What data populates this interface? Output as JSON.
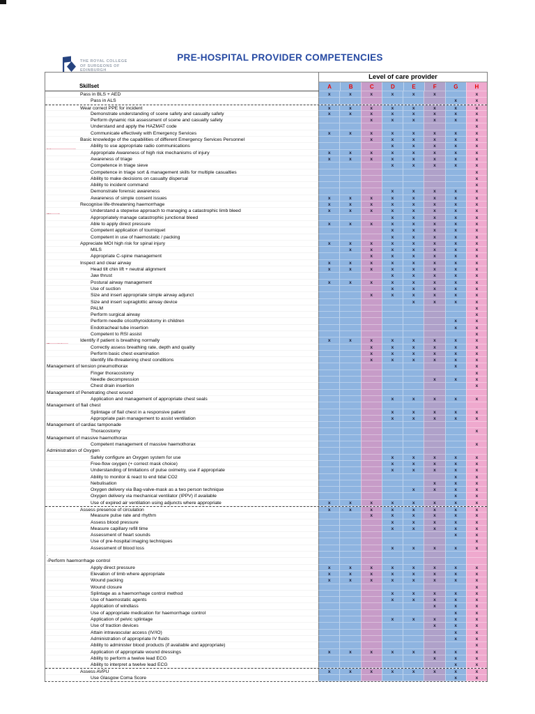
{
  "title": "PRE-HOSPITAL PROVIDER COMPETENCIES",
  "logo": {
    "line1": "THE ROYAL COLLEGE",
    "line2": "OF SURGEONS OF",
    "line3": "EDINBURGH"
  },
  "colors": {
    "title_blue": "#2448A2",
    "column_letter_red": "#E80000",
    "column_blue": "#8EB4E0",
    "column_plum": "#C79CC8",
    "column_lavender": "#AFA1C9",
    "column_pink": "#EFA9CE",
    "category_bg": "#F5C3CD",
    "category_text": "#943437",
    "logo_blue": "#26437F",
    "logo_text_gray": "#98A1AE"
  },
  "table": {
    "corner_header": "Skillset",
    "columns_header": "Level of care provider",
    "mark": "x",
    "columns": [
      "A",
      "B",
      "C",
      "D",
      "E",
      "F",
      "G",
      "H"
    ],
    "column_colors": {
      "A": "#8EB4E0",
      "B": "#8EB4E0",
      "C": "#C79CC8",
      "D": "#8EB4E0",
      "E": "#8EB4E0",
      "F": "#AFA1C9",
      "G": "#8EB4E0",
      "H": "#EFA9CE"
    },
    "rows": [
      {
        "cat": "",
        "label": "Pass in BLS + AED",
        "marks": "ABCDEFH"
      },
      {
        "cat": "",
        "label": "Pass in ALS",
        "marks": "GH",
        "indent": true
      },
      {
        "cat": "Safety",
        "label": "Wear correct PPE for incident",
        "marks": "ABCDEFGH",
        "dash": true
      },
      {
        "label": "Demonstrate understanding of scene safety and casualty safety",
        "marks": "ABCDEFGH",
        "indent": true
      },
      {
        "label": "Perform dynamic risk assessment of scene and casualty safety",
        "marks": "CDEFGH",
        "indent": true
      },
      {
        "label": "Understand and apply the HAZMAT code",
        "marks": "H",
        "indent": true
      },
      {
        "label": "Communicate effectively with Emergency Services",
        "marks": "ABCDEFGH",
        "indent": true
      },
      {
        "cat": "Scene",
        "label": "Basic knowledge of the capabilities of different Emergency Services Personnel",
        "marks": "CDEFGH"
      },
      {
        "cat": "Management",
        "label": "Ability to use appropriate radio communications",
        "marks": "DEFGH",
        "indent": true
      },
      {
        "label": "Appropriate Awareness of high risk mechanisms of injury",
        "marks": "ABCDEFGH",
        "indent": true
      },
      {
        "label": "Awareness of triage",
        "marks": "ABCDEFGH",
        "indent": true
      },
      {
        "label": "Competence in triage sieve",
        "marks": "DEFGH",
        "indent": true
      },
      {
        "label": "Competence in triage sort & management skills for multiple casualties",
        "marks": "H",
        "indent": true
      },
      {
        "label": "Ability to make decisions on casualty dispersal",
        "marks": "H",
        "indent": true
      },
      {
        "label": "Ability to incident command",
        "marks": "H",
        "indent": true
      },
      {
        "label": "Demonstrate forensic awareness",
        "marks": "DEFGH",
        "indent": true
      },
      {
        "label": "Awareness of simple consent issues",
        "marks": "ABCDEFGH",
        "indent": true
      },
      {
        "cat": "Catastrophic",
        "label": "Recognise life-threatening haemorrhage",
        "marks": "ABCDEFGH"
      },
      {
        "cat": "Bleed",
        "label": "Understand a stepwise approach to managing a catastrophic limb bleed",
        "marks": "ABCDEFGH",
        "indent": true
      },
      {
        "label": "Appropriately manage catastrophic junctional bleed",
        "marks": "DEFGH",
        "indent": true
      },
      {
        "label": "Able to apply direct pressure",
        "marks": "ABCDEFGH",
        "indent": true
      },
      {
        "label": "Competent application of tourniquet",
        "marks": "DEFGH",
        "indent": true
      },
      {
        "label": "Competent in use of haemostatic / packing",
        "marks": "DEFGH",
        "indent": true
      },
      {
        "cat": "Spinal",
        "label": "Appreciate MOI high risk for spinal injury",
        "marks": "ABCDEFGH"
      },
      {
        "label": "MILS",
        "marks": "BCDEFGH",
        "indent": true
      },
      {
        "label": "Appropriate C-spine management",
        "marks": "CDEFGH",
        "indent": true
      },
      {
        "cat": "Airway",
        "label": "Inspect and clear airway",
        "marks": "ABCDEFGH"
      },
      {
        "label": "Head tilt chin lift + neutral alignment",
        "marks": "ABCDEFGH",
        "indent": true
      },
      {
        "label": "Jaw thrust",
        "marks": "DEFGH",
        "indent": true
      },
      {
        "label": "Postural airway management",
        "marks": "ABCDEFGH",
        "indent": true
      },
      {
        "label": "Use of suction",
        "marks": "DEFGH",
        "indent": true
      },
      {
        "label": "Size and insert appropriate simple airway adjunct",
        "marks": "CDEFGH",
        "indent": true
      },
      {
        "label": "Size and insert supraglottic airway device",
        "marks": "EFGH",
        "indent": true
      },
      {
        "label": "PALM",
        "marks": "H",
        "indent": true
      },
      {
        "label": "Perform surgical airway",
        "marks": "H",
        "indent": true
      },
      {
        "label": "Perform needle cricothyroidotomy in children",
        "marks": "GH",
        "indent": true
      },
      {
        "label": "Endotracheal tube insertion",
        "marks": "GH",
        "indent": true
      },
      {
        "label": "Competent to RSI assist",
        "marks": "H",
        "indent": true
      },
      {
        "cat": "Breathing",
        "label": "Identify if patient is breathing normally",
        "marks": "ABCDEFGH"
      },
      {
        "label": "Correctly assess breathing rate, depth and quality",
        "marks": "CDEFGH",
        "indent": true
      },
      {
        "label": "Perform basic chest examination",
        "marks": "CDEFGH",
        "indent": true
      },
      {
        "label": "Identify life-threatening chest conditions",
        "marks": "CDEFGH",
        "indent": true
      },
      {
        "group": true,
        "label": "Management of tension pneumothorax",
        "marks": "GH"
      },
      {
        "label": "Finger thoracostomy",
        "marks": "H",
        "indent": true
      },
      {
        "label": "Needle decompression",
        "marks": "FGH",
        "indent": true
      },
      {
        "label": "Chest drain insertion",
        "marks": "H",
        "indent": true
      },
      {
        "group": true,
        "label": "Management of Penetrating chest wound",
        "marks": ""
      },
      {
        "label": "Application and management of appropriate chest seals",
        "marks": "DEFGH",
        "indent": true
      },
      {
        "group": true,
        "label": "Management of flail chest",
        "marks": ""
      },
      {
        "label": "Splintage of flail chest in a responsive patient",
        "marks": "DEFGH",
        "indent": true
      },
      {
        "label": "Appropriate pain management to assist ventilation",
        "marks": "DEFGH",
        "indent": true
      },
      {
        "group": true,
        "label": "Management of cardiac tamponade",
        "marks": ""
      },
      {
        "label": "Thoracostomy",
        "marks": "H",
        "indent": true
      },
      {
        "group": true,
        "label": "Management of massive haemothorax",
        "marks": ""
      },
      {
        "label": "Competent management of massive haemothorax",
        "marks": "H",
        "indent": true
      },
      {
        "group": true,
        "label": "Administration of Oxygen",
        "marks": ""
      },
      {
        "label": "Safely configure an Oxygen system for use",
        "marks": "DEFGH",
        "indent": true
      },
      {
        "label": "Free-flow oxygen (+ correct mask choice)",
        "marks": "DEFGH",
        "indent": true
      },
      {
        "label": "Understanding of limitations of pulse oximetry, use if appropriate",
        "marks": "DEFGH",
        "indent": true
      },
      {
        "label": "Ability to monitor & react to end tidal CO2",
        "marks": "GH",
        "indent": true
      },
      {
        "label": "Nebulisation",
        "marks": "FGH",
        "indent": true
      },
      {
        "label": "Oxygen delivery via Bag-valve-mask as a two person technique",
        "marks": "EFGH",
        "indent": true
      },
      {
        "label": "Oxygen delivery via mechanical ventilator (IPPV) if available",
        "marks": "GH",
        "indent": true
      },
      {
        "label": "Use of expired air ventilation using adjuncts where appropriate",
        "marks": "ABCDEFGH",
        "indent": true
      },
      {
        "cat": "Circulation",
        "label": "Assess presence of circulation",
        "marks": "ABCDEFGH",
        "dash": true
      },
      {
        "label": "Measure pulse rate and rhythm",
        "marks": "CDEFGH",
        "indent": true
      },
      {
        "label": "Assess blood pressure",
        "marks": "DEFGH",
        "indent": true
      },
      {
        "label": "Measure capillary refill time",
        "marks": "DEFGH",
        "indent": true
      },
      {
        "label": "Assessment of heart sounds",
        "marks": "GH",
        "indent": true
      },
      {
        "label": "Use of pre-hospital imaging techniques",
        "marks": "H",
        "indent": true
      },
      {
        "label": "Assessment of blood loss",
        "marks": "DEFGH",
        "indent": true
      },
      {
        "group": true,
        "label": ".",
        "marks": ""
      },
      {
        "group": true,
        "label": "-Perform haemorrhage control",
        "marks": ""
      },
      {
        "label": "Apply direct pressure",
        "marks": "ABCDEFGH",
        "indent": true
      },
      {
        "label": "Elevation of limb where appropriate",
        "marks": "ABCDEFGH",
        "indent": true
      },
      {
        "label": "Wound packing",
        "marks": "ABCDEFGH",
        "indent": true
      },
      {
        "label": "Wound closure",
        "marks": "H",
        "indent": true
      },
      {
        "label": "Splintage as a haemorrhage control method",
        "marks": "DEFGH",
        "indent": true
      },
      {
        "label": "Use of haemostatic agents",
        "marks": "DEFGH",
        "indent": true
      },
      {
        "label": "Application of windlass",
        "marks": "FGH",
        "indent": true
      },
      {
        "label": "Use of appropriate medication for haemorrhage control",
        "marks": "GH",
        "indent": true
      },
      {
        "label": "Application of pelvic splintage",
        "marks": "DEFGH",
        "indent": true
      },
      {
        "label": "Use of traction devices",
        "marks": "FGH",
        "indent": true
      },
      {
        "label": "Attain intravascular access (IV/IO)",
        "marks": "GH",
        "indent": true
      },
      {
        "label": "Administration of appropriate IV fluids",
        "marks": "GH",
        "indent": true
      },
      {
        "label": "Ability to administer blood products (if available and appropriate)",
        "marks": "H",
        "indent": true
      },
      {
        "label": "Application of appropriate wound dressings",
        "marks": "ABCDEFGH",
        "indent": true
      },
      {
        "label": "Ability to perform a twelve lead ECG",
        "marks": "FGH",
        "indent": true
      },
      {
        "label": "Ability to interpret a twelve lead ECG",
        "marks": "GH",
        "indent": true
      },
      {
        "cat": "Disability",
        "label": "Assess AVPU",
        "marks": "ABCDEFGH",
        "dash": true
      },
      {
        "label": "Use Glasgow Coma Score",
        "marks": "GH",
        "indent": true
      }
    ]
  }
}
